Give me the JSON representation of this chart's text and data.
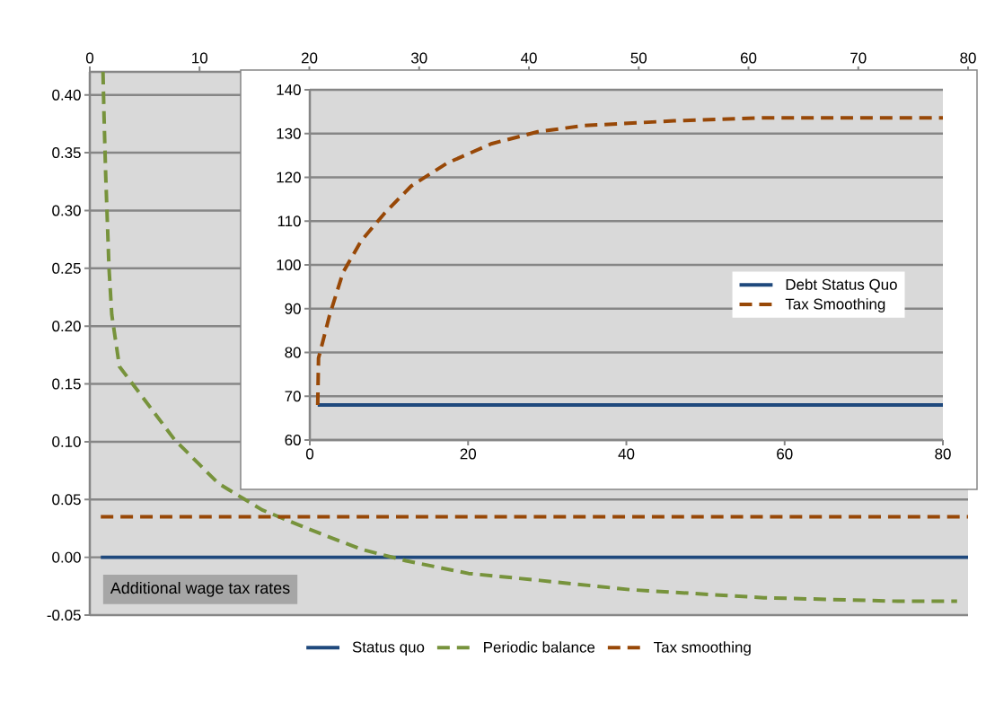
{
  "chart_data": [
    {
      "type": "line",
      "xlim": [
        0,
        80
      ],
      "xticks": [
        0,
        10,
        20,
        30,
        40,
        50,
        60,
        70,
        80
      ],
      "ylim": [
        -0.05,
        0.42
      ],
      "yticks": [
        -0.05,
        {
          "value": 0,
          "label": "0.00"
        },
        0.05,
        {
          "value": 0.1,
          "label": "0.10"
        },
        0.15,
        {
          "value": 0.2,
          "label": "0.20"
        },
        0.25,
        {
          "value": 0.3,
          "label": "0.30"
        },
        0.35,
        {
          "value": 0.4,
          "label": "0.40"
        }
      ],
      "grid": "y",
      "legend": "bottom",
      "marker": "none",
      "annotations": [
        "Additional wage tax rates"
      ],
      "series": [
        {
          "name": "Status quo",
          "color": "#1f497d",
          "line_style": "solid",
          "x": [
            1,
            80
          ],
          "values": [
            0,
            0
          ]
        },
        {
          "name": "Periodic balance",
          "color": "#77933c",
          "line_style": "dashed",
          "x": [
            1.2,
            1.3,
            1.45,
            1.6,
            1.75,
            2,
            2.7,
            4.3,
            7.7,
            11.7,
            15.7,
            19.8,
            24.7,
            28.8,
            34.5,
            41,
            49.2,
            61.4,
            73.6,
            79
          ],
          "values": [
            0.42,
            0.38,
            0.33,
            0.29,
            0.25,
            0.21,
            0.165,
            0.145,
            0.102,
            0.064,
            0.041,
            0.025,
            0.007,
            -0.003,
            -0.014,
            -0.02,
            -0.028,
            -0.035,
            -0.038,
            -0.038
          ]
        },
        {
          "name": "Tax smoothing",
          "color": "#984807",
          "line_style": "dashed",
          "x": [
            1,
            80
          ],
          "values": [
            0.035,
            0.035
          ]
        }
      ]
    },
    {
      "type": "line",
      "xlim": [
        0,
        80
      ],
      "xticks": [
        0,
        20,
        40,
        60,
        80
      ],
      "ylim": [
        60,
        140
      ],
      "yticks": [
        60,
        70,
        80,
        90,
        100,
        110,
        120,
        130,
        140
      ],
      "grid": "y",
      "legend": "right",
      "marker": "none",
      "series": [
        {
          "name": "Debt Status Quo",
          "color": "#1f497d",
          "line_style": "solid",
          "x": [
            1,
            80
          ],
          "values": [
            68,
            68
          ]
        },
        {
          "name": "Tax Smoothing",
          "color": "#984807",
          "line_style": "dashed",
          "x": [
            1,
            1.1,
            2.5,
            4.2,
            6.5,
            9.4,
            12.8,
            17.4,
            23,
            28.8,
            34.5,
            46,
            57.4,
            80
          ],
          "values": [
            68,
            78.7,
            88.5,
            98.3,
            105.5,
            111.7,
            118,
            123.3,
            127.7,
            130.4,
            131.8,
            132.9,
            133.6,
            133.6
          ]
        }
      ]
    }
  ]
}
